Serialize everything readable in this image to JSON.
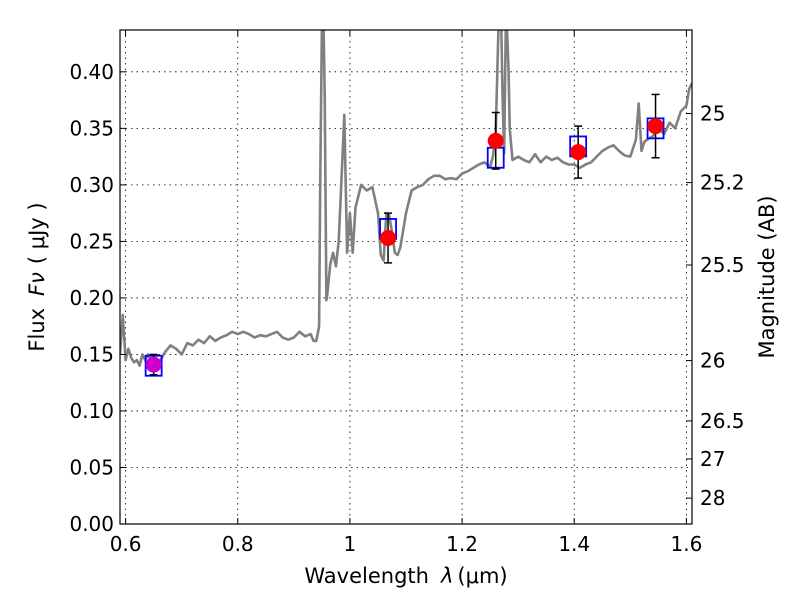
{
  "chart_data": {
    "type": "line",
    "xlabel": "Wavelength",
    "xlabel_symbol": "λ",
    "xlabel_unit": "(μm)",
    "ylabel": "Flux",
    "ylabel_symbol": "Fν",
    "ylabel_unit": "( μJy )",
    "y2label": "Magnitude (AB)",
    "xlim": [
      0.59,
      1.61
    ],
    "ylim": [
      0.0,
      0.437
    ],
    "grid": true,
    "legend": "none",
    "x_ticks": [
      {
        "value": 0.6,
        "label": "0.6"
      },
      {
        "value": 0.8,
        "label": "0.8"
      },
      {
        "value": 1.0,
        "label": "1"
      },
      {
        "value": 1.2,
        "label": "1.2"
      },
      {
        "value": 1.4,
        "label": "1.4"
      },
      {
        "value": 1.6,
        "label": "1.6"
      }
    ],
    "y_ticks": [
      {
        "value": 0.0,
        "label": "0.00"
      },
      {
        "value": 0.05,
        "label": "0.05"
      },
      {
        "value": 0.1,
        "label": "0.10"
      },
      {
        "value": 0.15,
        "label": "0.15"
      },
      {
        "value": 0.2,
        "label": "0.20"
      },
      {
        "value": 0.25,
        "label": "0.25"
      },
      {
        "value": 0.3,
        "label": "0.30"
      },
      {
        "value": 0.35,
        "label": "0.35"
      },
      {
        "value": 0.4,
        "label": "0.40"
      }
    ],
    "y2_ticks": [
      {
        "label": "25",
        "mag": 25.0
      },
      {
        "label": "25.2",
        "mag": 25.2
      },
      {
        "label": "25.5",
        "mag": 25.5
      },
      {
        "label": "26",
        "mag": 26.0
      },
      {
        "label": "26.5",
        "mag": 26.5
      },
      {
        "label": "27",
        "mag": 27.0
      },
      {
        "label": "28",
        "mag": 28.0
      }
    ],
    "colors": {
      "model": "#808080",
      "observed": "#ff0000",
      "model_band": "#0000ff",
      "error_bar": "#000000",
      "overlap": "#cc00cc"
    },
    "series": [
      {
        "role": "model_spectrum",
        "x": [
          0.59,
          0.595,
          0.6,
          0.605,
          0.61,
          0.615,
          0.62,
          0.625,
          0.63,
          0.635,
          0.64,
          0.65,
          0.66,
          0.67,
          0.68,
          0.69,
          0.7,
          0.71,
          0.72,
          0.73,
          0.74,
          0.75,
          0.76,
          0.77,
          0.78,
          0.79,
          0.8,
          0.81,
          0.82,
          0.83,
          0.84,
          0.85,
          0.86,
          0.87,
          0.88,
          0.89,
          0.9,
          0.91,
          0.92,
          0.93,
          0.935,
          0.94,
          0.945,
          0.947,
          0.95,
          0.953,
          0.955,
          0.958,
          0.96,
          0.965,
          0.97,
          0.975,
          0.98,
          0.985,
          0.99,
          0.995,
          1.0,
          1.005,
          1.01,
          1.02,
          1.03,
          1.04,
          1.05,
          1.055,
          1.06,
          1.065,
          1.07,
          1.075,
          1.08,
          1.085,
          1.09,
          1.1,
          1.11,
          1.12,
          1.13,
          1.14,
          1.15,
          1.16,
          1.17,
          1.18,
          1.19,
          1.2,
          1.21,
          1.22,
          1.23,
          1.24,
          1.25,
          1.255,
          1.26,
          1.265,
          1.27,
          1.272,
          1.275,
          1.278,
          1.28,
          1.283,
          1.285,
          1.29,
          1.3,
          1.31,
          1.32,
          1.33,
          1.34,
          1.35,
          1.36,
          1.37,
          1.38,
          1.39,
          1.4,
          1.41,
          1.42,
          1.43,
          1.44,
          1.45,
          1.46,
          1.47,
          1.48,
          1.49,
          1.5,
          1.51,
          1.515,
          1.52,
          1.525,
          1.53,
          1.54,
          1.55,
          1.56,
          1.57,
          1.58,
          1.59,
          1.6,
          1.605,
          1.61
        ],
        "y": [
          0.15,
          0.185,
          0.145,
          0.155,
          0.147,
          0.143,
          0.145,
          0.14,
          0.15,
          0.145,
          0.15,
          0.14,
          0.143,
          0.152,
          0.158,
          0.155,
          0.15,
          0.16,
          0.158,
          0.163,
          0.16,
          0.166,
          0.162,
          0.165,
          0.167,
          0.17,
          0.168,
          0.17,
          0.168,
          0.165,
          0.167,
          0.166,
          0.168,
          0.17,
          0.165,
          0.163,
          0.165,
          0.17,
          0.166,
          0.168,
          0.162,
          0.162,
          0.175,
          0.3,
          0.44,
          0.44,
          0.38,
          0.198,
          0.205,
          0.23,
          0.24,
          0.228,
          0.25,
          0.305,
          0.362,
          0.24,
          0.275,
          0.24,
          0.28,
          0.3,
          0.295,
          0.298,
          0.275,
          0.238,
          0.233,
          0.275,
          0.273,
          0.258,
          0.24,
          0.238,
          0.245,
          0.275,
          0.295,
          0.298,
          0.3,
          0.305,
          0.308,
          0.308,
          0.305,
          0.306,
          0.305,
          0.31,
          0.312,
          0.315,
          0.318,
          0.32,
          0.316,
          0.325,
          0.345,
          0.44,
          0.44,
          0.38,
          0.328,
          0.44,
          0.44,
          0.4,
          0.35,
          0.322,
          0.325,
          0.322,
          0.32,
          0.327,
          0.32,
          0.325,
          0.322,
          0.324,
          0.32,
          0.318,
          0.318,
          0.315,
          0.318,
          0.32,
          0.325,
          0.33,
          0.333,
          0.335,
          0.33,
          0.326,
          0.325,
          0.34,
          0.372,
          0.33,
          0.338,
          0.34,
          0.343,
          0.35,
          0.345,
          0.355,
          0.35,
          0.365,
          0.37,
          0.385,
          0.39
        ]
      },
      {
        "role": "model_band_flux",
        "x": [
          0.65,
          1.068,
          1.26,
          1.407,
          1.545
        ],
        "y": [
          0.14,
          0.261,
          0.324,
          0.334,
          0.35
        ]
      },
      {
        "role": "observed_flux",
        "x": [
          0.65,
          1.068,
          1.26,
          1.407,
          1.545
        ],
        "y": [
          0.141,
          0.253,
          0.339,
          0.329,
          0.352
        ],
        "err": [
          0.009,
          0.022,
          0.025,
          0.023,
          0.028
        ]
      }
    ]
  }
}
